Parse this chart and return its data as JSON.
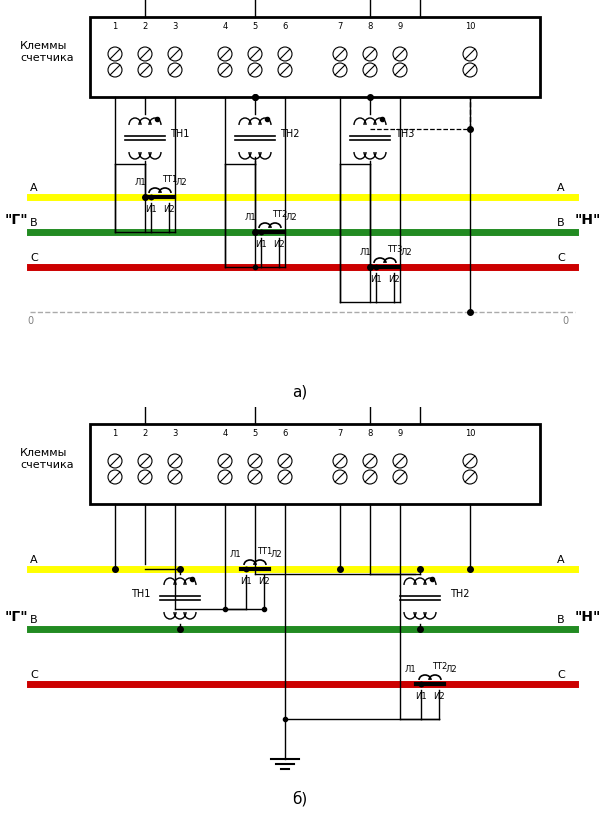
{
  "fig_width": 6.0,
  "fig_height": 8.14,
  "bg_color": "#ffffff",
  "phase_A_color": "#ffff00",
  "phase_B_color": "#228B22",
  "phase_C_color": "#cc0000",
  "zero_color": "#aaaaaa",
  "title_a": "а)",
  "title_b": "б)",
  "label_G": "\"Г\"",
  "label_H": "\"Н\"",
  "label_klemmy": "Клеммы\nсчетчика"
}
